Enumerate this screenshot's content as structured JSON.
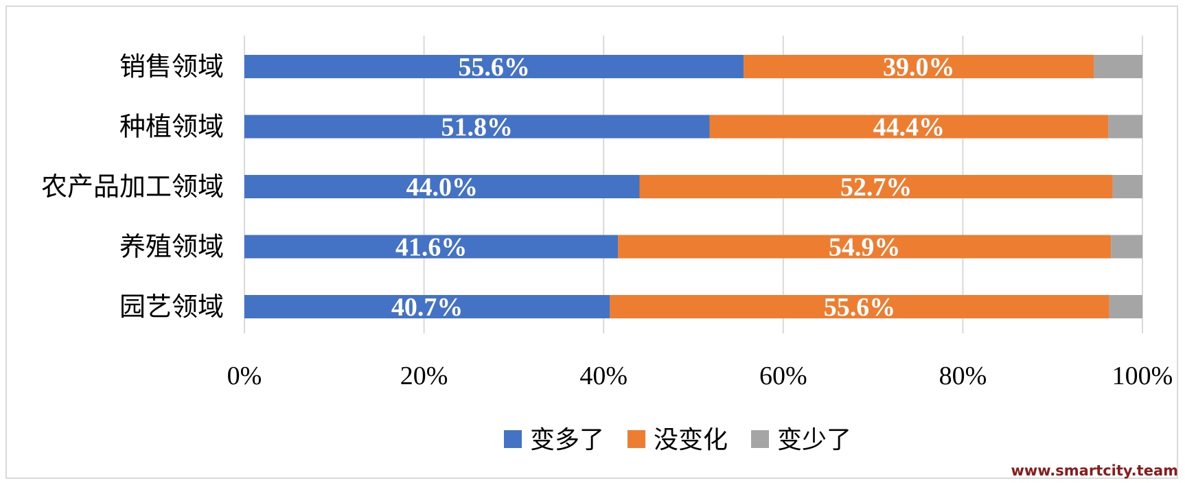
{
  "chart_data": {
    "type": "bar",
    "orientation": "horizontal",
    "stacked": "percent",
    "categories": [
      "销售领域",
      "种植领域",
      "农产品加工领域",
      "养殖领域",
      "园艺领域"
    ],
    "series": [
      {
        "name": "变多了",
        "color": "#4472c4",
        "values": [
          55.6,
          51.8,
          44.0,
          41.6,
          40.7
        ],
        "labels": [
          "55.6%",
          "51.8%",
          "44.0%",
          "41.6%",
          "40.7%"
        ]
      },
      {
        "name": "没变化",
        "color": "#ed7d31",
        "values": [
          39.0,
          44.4,
          52.7,
          54.9,
          55.6
        ],
        "labels": [
          "39.0%",
          "44.4%",
          "52.7%",
          "54.9%",
          "55.6%"
        ]
      },
      {
        "name": "变少了",
        "color": "#a5a5a5",
        "values": [
          5.4,
          3.8,
          3.3,
          3.5,
          3.7
        ],
        "labels": []
      }
    ],
    "xlim": [
      0,
      100
    ],
    "xticks": [
      "0%",
      "20%",
      "40%",
      "60%",
      "80%",
      "100%"
    ],
    "grid": true,
    "legend_position": "bottom"
  },
  "watermark": "www.smartcity.team"
}
